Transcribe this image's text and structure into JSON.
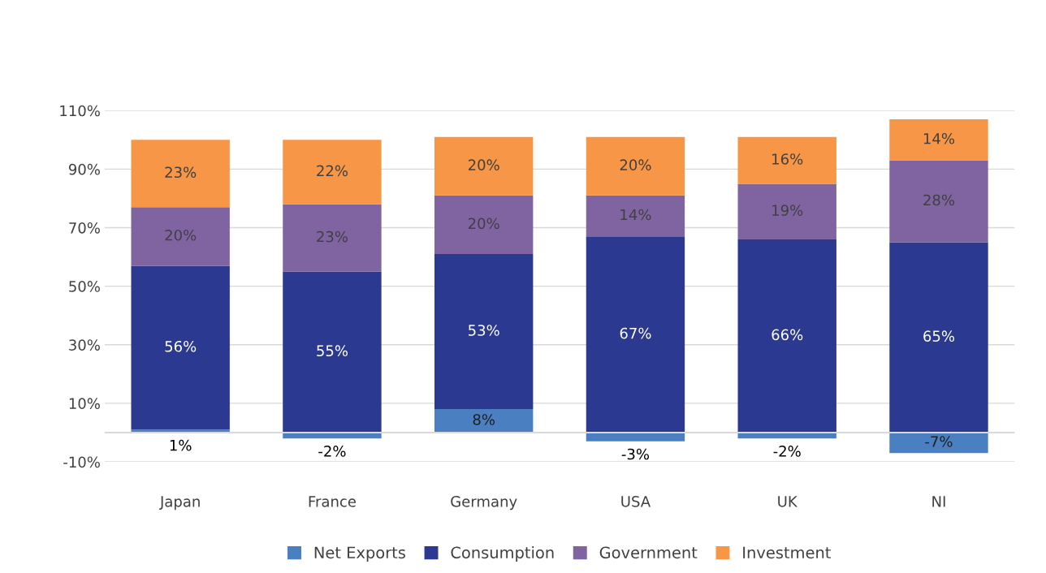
{
  "chart_data": {
    "type": "bar",
    "stacked": true,
    "categories": [
      "Japan",
      "France",
      "Germany",
      "USA",
      "UK",
      "NI"
    ],
    "series": [
      {
        "name": "Net Exports",
        "color": "#4a7fc1",
        "values": [
          1,
          -2,
          8,
          -3,
          -2,
          -7
        ],
        "value_labels": [
          "1%",
          "-2%",
          "8%",
          "-3%",
          "-2%",
          "-7%"
        ]
      },
      {
        "name": "Consumption",
        "color": "#2b3990",
        "values": [
          56,
          55,
          53,
          67,
          66,
          65
        ],
        "value_labels": [
          "56%",
          "55%",
          "53%",
          "67%",
          "66%",
          "65%"
        ]
      },
      {
        "name": "Government",
        "color": "#8064a2",
        "values": [
          20,
          23,
          20,
          14,
          19,
          28
        ],
        "value_labels": [
          "20%",
          "23%",
          "20%",
          "14%",
          "19%",
          "28%"
        ]
      },
      {
        "name": "Investment",
        "color": "#f79646",
        "values": [
          23,
          22,
          20,
          20,
          16,
          14
        ],
        "value_labels": [
          "23%",
          "22%",
          "20%",
          "20%",
          "16%",
          "14%"
        ]
      }
    ],
    "ylim": [
      -10,
      110
    ],
    "yticks": [
      {
        "value": -10,
        "label": "-10%"
      },
      {
        "value": 10,
        "label": "10%"
      },
      {
        "value": 30,
        "label": "30%"
      },
      {
        "value": 50,
        "label": "50%"
      },
      {
        "value": 70,
        "label": "70%"
      },
      {
        "value": 90,
        "label": "90%"
      },
      {
        "value": 110,
        "label": "110%"
      }
    ],
    "grid": "y",
    "legend": "bottom"
  }
}
